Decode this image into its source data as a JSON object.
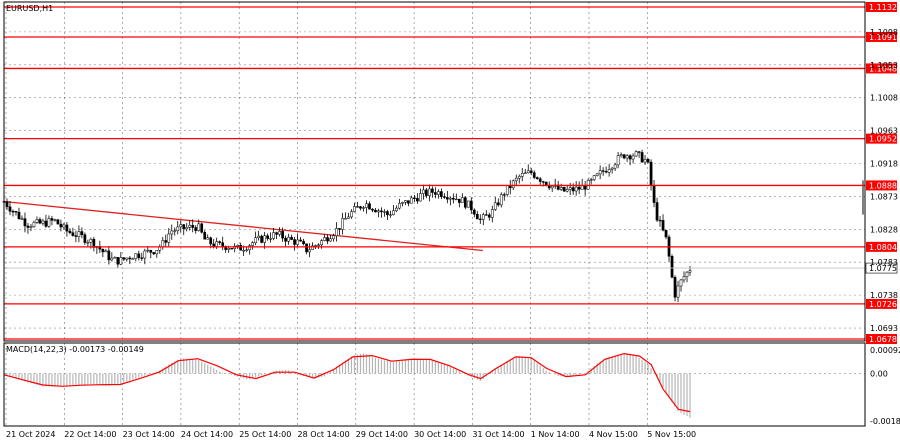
{
  "chart_title": "EURUSD,H1",
  "indicator_label": "MACD(14,22,3) -0.00173 -0.00149",
  "colors": {
    "background": "#ffffff",
    "grid": "#000000",
    "level_line": "#ff0000",
    "trend_line": "#e0201f",
    "candle": "#000000",
    "histogram": "#b5b5b5",
    "signal_line": "#ff0000",
    "current_price_label_bg": "#ffffff"
  },
  "chart_data": [
    {
      "type": "candlestick",
      "symbol": "EURUSD",
      "timeframe": "H1",
      "y_axis_ticks": [
        "1.1132",
        "1.1098",
        "1.1091",
        "1.1053",
        "1.1048",
        "1.1008",
        "1.0963",
        "1.0952",
        "1.0918",
        "1.0888",
        "1.0873",
        "1.0828",
        "1.0804",
        "1.0783",
        "1.0775",
        "1.0738",
        "1.0726",
        "1.0693",
        "1.0678"
      ],
      "ylim": [
        1.0678,
        1.1132
      ],
      "x_axis_ticks": [
        "21 Oct 2024",
        "22 Oct 14:00",
        "23 Oct 14:00",
        "24 Oct 14:00",
        "25 Oct 14:00",
        "28 Oct 14:00",
        "29 Oct 14:00",
        "30 Oct 14:00",
        "31 Oct 14:00",
        "1 Nov 14:00",
        "4 Nov 15:00",
        "5 Nov 15:00"
      ],
      "horizontal_levels": [
        "1.1132",
        "1.1091",
        "1.1048",
        "1.0952",
        "1.0888",
        "1.0804",
        "1.0726",
        "1.0678"
      ],
      "current_price": "1.0775",
      "trend_line": {
        "from": {
          "x": "21 Oct 2024",
          "y": 1.0866
        },
        "to": {
          "x": "25 Oct 14:00",
          "y": 1.0799
        }
      },
      "price_path": [
        [
          0,
          1.0866
        ],
        [
          0.3,
          1.085
        ],
        [
          0.6,
          1.0835
        ],
        [
          1.0,
          1.0836
        ],
        [
          1.3,
          1.084
        ],
        [
          1.6,
          1.0826
        ],
        [
          2.0,
          1.0818
        ],
        [
          2.3,
          1.081
        ],
        [
          2.6,
          1.0795
        ],
        [
          2.8,
          1.0786
        ],
        [
          3.0,
          1.0785
        ],
        [
          3.3,
          1.0792
        ],
        [
          3.6,
          1.0795
        ],
        [
          3.9,
          1.08
        ],
        [
          4.1,
          1.0808
        ],
        [
          4.3,
          1.0826
        ],
        [
          4.7,
          1.083
        ],
        [
          5.0,
          1.0832
        ],
        [
          5.2,
          1.0812
        ],
        [
          5.5,
          1.0806
        ],
        [
          5.8,
          1.0805
        ],
        [
          6.0,
          1.0801
        ],
        [
          6.2,
          1.0804
        ],
        [
          6.5,
          1.0812
        ],
        [
          6.9,
          1.082
        ],
        [
          7.1,
          1.082
        ],
        [
          7.4,
          1.0813
        ],
        [
          7.6,
          1.081
        ],
        [
          7.8,
          1.08
        ],
        [
          8.0,
          1.0805
        ],
        [
          8.2,
          1.0812
        ],
        [
          8.6,
          1.0828
        ],
        [
          8.9,
          1.0848
        ],
        [
          9.3,
          1.0864
        ],
        [
          9.6,
          1.0856
        ],
        [
          9.9,
          1.0848
        ],
        [
          10.2,
          1.086
        ],
        [
          10.5,
          1.0868
        ],
        [
          10.8,
          1.0876
        ],
        [
          11.1,
          1.088
        ],
        [
          11.4,
          1.0876
        ],
        [
          11.8,
          1.0868
        ],
        [
          12.1,
          1.0856
        ],
        [
          12.3,
          1.084
        ],
        [
          12.6,
          1.0852
        ],
        [
          12.9,
          1.0878
        ],
        [
          13.3,
          1.09
        ],
        [
          13.6,
          1.0906
        ],
        [
          13.9,
          1.0895
        ],
        [
          14.2,
          1.0885
        ],
        [
          14.4,
          1.088
        ],
        [
          14.8,
          1.0883
        ],
        [
          15.1,
          1.089
        ],
        [
          15.4,
          1.0905
        ],
        [
          15.7,
          1.0918
        ],
        [
          16.0,
          1.093
        ],
        [
          16.3,
          1.093
        ],
        [
          16.6,
          1.0921
        ],
        [
          16.8,
          1.0852
        ],
        [
          17.1,
          1.0812
        ],
        [
          17.3,
          1.0738
        ],
        [
          17.5,
          1.076
        ],
        [
          17.7,
          1.0774
        ]
      ]
    },
    {
      "type": "macd",
      "params": "14,22,3",
      "main_value": "-0.00173",
      "signal_value": "-0.00149",
      "y_axis_ticks": [
        "0.00092",
        "0.00",
        "-0.00186"
      ],
      "ylim": [
        -0.00195,
        0.001
      ],
      "histogram_path": [
        [
          0,
          0.0
        ],
        [
          0.3,
          -0.0002
        ],
        [
          0.6,
          -0.00035
        ],
        [
          1.0,
          -0.0005
        ],
        [
          1.3,
          -0.00052
        ],
        [
          1.6,
          -0.00048
        ],
        [
          2.0,
          -0.00045
        ],
        [
          2.3,
          -0.0004
        ],
        [
          2.6,
          -0.0005
        ],
        [
          3.0,
          -0.00042
        ],
        [
          3.3,
          -0.00025
        ],
        [
          3.6,
          -0.0001
        ],
        [
          4.0,
          0.0001
        ],
        [
          4.3,
          0.0004
        ],
        [
          4.6,
          0.0006
        ],
        [
          5.0,
          0.00055
        ],
        [
          5.3,
          0.0003
        ],
        [
          5.6,
          5e-05
        ],
        [
          6.0,
          -0.0001
        ],
        [
          6.3,
          -0.00025
        ],
        [
          6.6,
          -0.0001
        ],
        [
          7.0,
          0.0001
        ],
        [
          7.3,
          0.00015
        ],
        [
          7.6,
          -5e-05
        ],
        [
          8.0,
          -0.0002
        ],
        [
          8.3,
          -0.0001
        ],
        [
          8.6,
          0.0003
        ],
        [
          9.0,
          0.0007
        ],
        [
          9.3,
          0.0008
        ],
        [
          9.6,
          0.0006
        ],
        [
          10.0,
          0.00045
        ],
        [
          10.3,
          0.0005
        ],
        [
          10.6,
          0.0006
        ],
        [
          11.0,
          0.00055
        ],
        [
          11.3,
          0.0004
        ],
        [
          11.6,
          0.0002
        ],
        [
          12.0,
          -0.0001
        ],
        [
          12.3,
          -0.0003
        ],
        [
          12.6,
          0.0001
        ],
        [
          13.0,
          0.0005
        ],
        [
          13.3,
          0.0007
        ],
        [
          13.6,
          0.0006
        ],
        [
          14.0,
          0.0001
        ],
        [
          14.3,
          -0.0001
        ],
        [
          14.6,
          -0.00015
        ],
        [
          15.0,
          0.0
        ],
        [
          15.3,
          0.0004
        ],
        [
          15.6,
          0.00065
        ],
        [
          16.0,
          0.0008
        ],
        [
          16.3,
          0.0007
        ],
        [
          16.6,
          0.0004
        ],
        [
          16.8,
          0.0
        ],
        [
          17.1,
          -0.0008
        ],
        [
          17.4,
          -0.0015
        ],
        [
          17.7,
          -0.00173
        ]
      ],
      "signal_path": [
        [
          0,
          -5e-05
        ],
        [
          0.5,
          -0.00025
        ],
        [
          1.0,
          -0.00045
        ],
        [
          1.5,
          -0.0005
        ],
        [
          2.0,
          -0.00046
        ],
        [
          2.5,
          -0.00044
        ],
        [
          3.0,
          -0.00043
        ],
        [
          3.5,
          -0.0002
        ],
        [
          4.0,
          5e-05
        ],
        [
          4.5,
          0.0005
        ],
        [
          5.0,
          0.00058
        ],
        [
          5.5,
          0.0003
        ],
        [
          6.0,
          -5e-05
        ],
        [
          6.5,
          -0.0002
        ],
        [
          7.0,
          5e-05
        ],
        [
          7.5,
          5e-05
        ],
        [
          8.0,
          -0.00018
        ],
        [
          8.5,
          0.00015
        ],
        [
          9.0,
          0.00065
        ],
        [
          9.5,
          0.0007
        ],
        [
          10.0,
          0.00048
        ],
        [
          10.5,
          0.00055
        ],
        [
          11.0,
          0.00055
        ],
        [
          11.5,
          0.0003
        ],
        [
          12.0,
          -5e-05
        ],
        [
          12.3,
          -0.0002
        ],
        [
          12.7,
          0.0002
        ],
        [
          13.2,
          0.00065
        ],
        [
          13.6,
          0.00062
        ],
        [
          14.0,
          0.0002
        ],
        [
          14.5,
          -0.00012
        ],
        [
          15.0,
          -5e-05
        ],
        [
          15.5,
          0.00055
        ],
        [
          16.0,
          0.00078
        ],
        [
          16.4,
          0.00068
        ],
        [
          16.7,
          0.00035
        ],
        [
          17.0,
          -0.0006
        ],
        [
          17.4,
          -0.0014
        ],
        [
          17.7,
          -0.00149
        ]
      ]
    }
  ]
}
